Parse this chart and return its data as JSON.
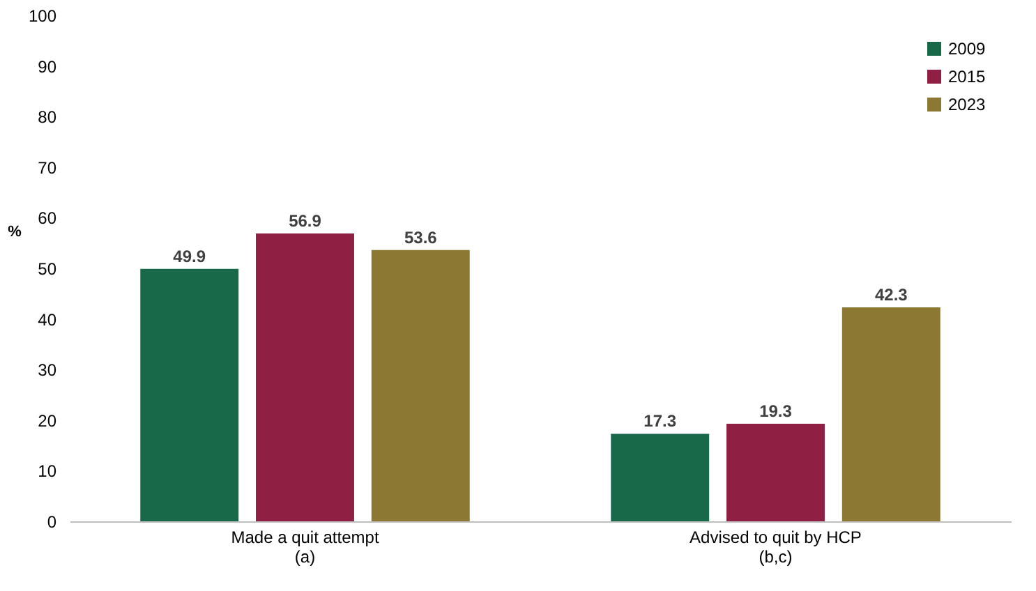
{
  "chart_data": {
    "type": "bar",
    "ylabel": "%",
    "categories": [
      "Made a quit attempt\n(a)",
      "Advised to quit by HCP\n(b,c)"
    ],
    "series": [
      {
        "name": "2009",
        "color": "#17694a",
        "values": [
          49.9,
          17.3
        ]
      },
      {
        "name": "2015",
        "color": "#8f1f43",
        "values": [
          56.9,
          19.3
        ]
      },
      {
        "name": "2023",
        "color": "#8c7832",
        "values": [
          53.6,
          42.3
        ]
      }
    ],
    "ylim": [
      0,
      100
    ],
    "yticks": [
      0,
      10,
      20,
      30,
      40,
      50,
      60,
      70,
      80,
      90,
      100
    ],
    "grid": false,
    "legend": "top right",
    "data_labels": true
  }
}
